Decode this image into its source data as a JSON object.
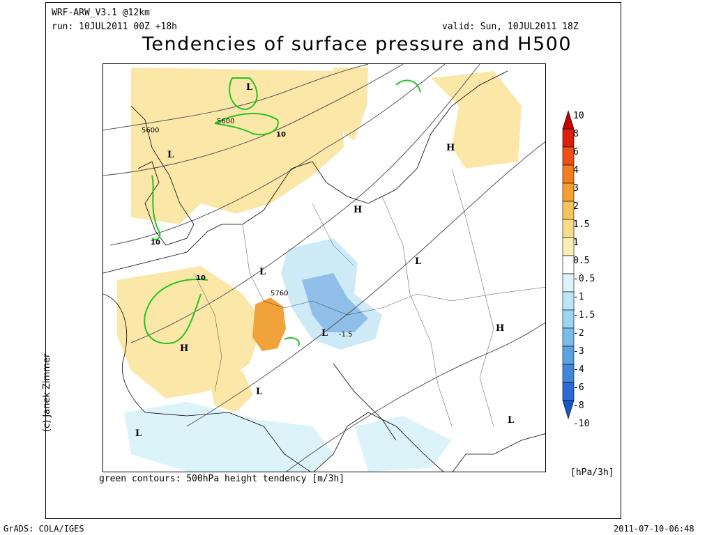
{
  "header": {
    "model": "WRF-ARW_V3.1  @12km",
    "run": "run: 10JUL2011 00Z +18h",
    "valid": "valid: Sun, 10JUL2011 18Z",
    "title": "Tendencies of surface pressure and H500"
  },
  "footer": {
    "legend_note": "green contours: 500hPa height tendency [m/3h]",
    "credit": "(c) Janek Zimmer",
    "grads": "GrADS: COLA/IGES",
    "timestamp": "2011-07-10-06:48"
  },
  "colorbar": {
    "unit": "[hPa/3h]",
    "labels": [
      "10",
      "8",
      "6",
      "4",
      "3",
      "2",
      "1.5",
      "1",
      "0.5",
      "-0.5",
      "-1",
      "-1.5",
      "-2",
      "-3",
      "-4",
      "-6",
      "-8",
      "-10"
    ],
    "colors": [
      "#c40000",
      "#dc1e0a",
      "#f04f14",
      "#f57d1e",
      "#f6a032",
      "#f8c35a",
      "#f9dc87",
      "#fbefb4",
      "#ffffff",
      "#dcf3fa",
      "#bce7f6",
      "#9bd5f1",
      "#7abceb",
      "#5aa2e4",
      "#3f86dc",
      "#2a6cd3",
      "#1656c9"
    ]
  },
  "map": {
    "pressure_systems": [
      {
        "symbol": "L"
      },
      {
        "symbol": "L"
      },
      {
        "symbol": "H"
      },
      {
        "symbol": "H"
      },
      {
        "symbol": "L"
      },
      {
        "symbol": "L"
      },
      {
        "symbol": "H"
      },
      {
        "symbol": "L"
      },
      {
        "symbol": "H"
      },
      {
        "symbol": "L"
      },
      {
        "symbol": "L"
      },
      {
        "symbol": "L"
      }
    ],
    "contour_labels": [
      "5600",
      "5600",
      "5760",
      "10",
      "10",
      "10",
      "-1.5"
    ],
    "colors": {
      "tendency_warm": "#fbe7a8",
      "tendency_orange": "#f2a23a",
      "tendency_cold": "#cfeaf7",
      "tendency_blue": "#8fbfe8",
      "h500_tendency_contour": "#22c422",
      "geopotential_contour": "#555555",
      "coastline": "#000000"
    }
  }
}
